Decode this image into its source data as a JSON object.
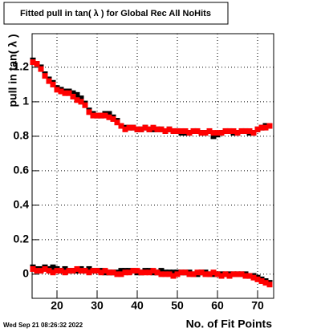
{
  "chart_data": {
    "type": "scatter",
    "title": "Fitted pull in tan( λ ) for Global Rec All NoHits",
    "y_label": "pull in tan( λ )",
    "x_label": "No. of Fit Points",
    "timestamp": "Wed Sep 21 08:26:32 2022",
    "grid": true,
    "xlim": [
      13.8,
      74
    ],
    "xticks": [
      20,
      30,
      40,
      50,
      60,
      70
    ],
    "ylim": [
      -0.14,
      1.395
    ],
    "yticks": [
      0,
      0.2,
      0.4,
      0.6,
      0.8,
      1,
      1.2
    ],
    "x": [
      14,
      15,
      16,
      17,
      18,
      19,
      20,
      21,
      22,
      23,
      24,
      25,
      26,
      27,
      28,
      29,
      30,
      31,
      32,
      33,
      34,
      35,
      36,
      37,
      38,
      39,
      40,
      41,
      42,
      43,
      44,
      45,
      46,
      47,
      48,
      49,
      50,
      51,
      52,
      53,
      54,
      55,
      56,
      57,
      58,
      59,
      60,
      61,
      62,
      63,
      64,
      65,
      66,
      67,
      68,
      69,
      70,
      71,
      72,
      73
    ],
    "series": [
      {
        "color": "#000000",
        "values": [
          1.24,
          1.22,
          1.2,
          1.16,
          1.13,
          1.11,
          1.08,
          1.07,
          1.06,
          1.06,
          1.05,
          1.04,
          1.02,
          0.99,
          0.95,
          0.93,
          0.92,
          0.92,
          0.93,
          0.93,
          0.91,
          0.89,
          0.86,
          0.85,
          0.85,
          0.85,
          0.84,
          0.84,
          0.85,
          0.84,
          0.84,
          0.84,
          0.84,
          0.83,
          0.84,
          0.83,
          0.83,
          0.82,
          0.82,
          0.82,
          0.83,
          0.83,
          0.82,
          0.82,
          0.83,
          0.8,
          0.81,
          0.82,
          0.83,
          0.83,
          0.82,
          0.82,
          0.83,
          0.83,
          0.82,
          0.82,
          0.84,
          0.85,
          0.86,
          0.86
        ]
      },
      {
        "color": "#000000",
        "values": [
          0.04,
          0.03,
          0.03,
          0.04,
          0.03,
          0.04,
          0.03,
          0.02,
          0.03,
          0.02,
          0.02,
          0.02,
          0.03,
          0.02,
          0.03,
          0.02,
          0.02,
          0.02,
          0.01,
          0.01,
          0.01,
          0.01,
          0.02,
          0.02,
          0.02,
          0.02,
          0.01,
          0.01,
          0.02,
          0.02,
          0.01,
          0.01,
          0.02,
          0.01,
          0.01,
          0.01,
          0.01,
          0.01,
          0.01,
          0.01,
          0.0,
          0.0,
          0.01,
          0.01,
          0.0,
          0.0,
          0.0,
          0.0,
          0.0,
          0.0,
          0.0,
          0.0,
          0.0,
          0.0,
          -0.01,
          -0.01,
          -0.02,
          -0.03,
          -0.04,
          -0.05
        ]
      },
      {
        "color": "#ff0000",
        "values": [
          1.23,
          1.22,
          1.19,
          1.15,
          1.12,
          1.1,
          1.07,
          1.06,
          1.05,
          1.05,
          1.03,
          1.01,
          1.0,
          0.98,
          0.94,
          0.92,
          0.92,
          0.92,
          0.92,
          0.91,
          0.9,
          0.88,
          0.86,
          0.84,
          0.85,
          0.85,
          0.84,
          0.84,
          0.85,
          0.84,
          0.85,
          0.84,
          0.84,
          0.83,
          0.84,
          0.83,
          0.83,
          0.83,
          0.83,
          0.82,
          0.83,
          0.83,
          0.82,
          0.82,
          0.83,
          0.82,
          0.82,
          0.82,
          0.83,
          0.83,
          0.83,
          0.82,
          0.83,
          0.83,
          0.83,
          0.82,
          0.84,
          0.85,
          0.85,
          0.86
        ]
      },
      {
        "color": "#ff0000",
        "values": [
          0.03,
          0.02,
          0.02,
          0.03,
          0.02,
          0.01,
          0.02,
          0.02,
          0.01,
          0.02,
          0.02,
          0.03,
          0.02,
          0.02,
          0.01,
          0.02,
          0.02,
          0.01,
          0.02,
          0.01,
          0.01,
          0.0,
          0.0,
          0.01,
          0.01,
          0.02,
          0.02,
          0.01,
          0.01,
          0.01,
          0.02,
          0.01,
          0.0,
          0.0,
          0.0,
          -0.01,
          0.0,
          0.01,
          0.01,
          0.0,
          0.0,
          0.01,
          0.01,
          0.0,
          0.0,
          0.01,
          0.0,
          -0.01,
          0.0,
          -0.01,
          0.0,
          0.0,
          0.0,
          -0.01,
          -0.01,
          -0.02,
          -0.03,
          -0.04,
          -0.05,
          -0.06
        ]
      }
    ]
  }
}
